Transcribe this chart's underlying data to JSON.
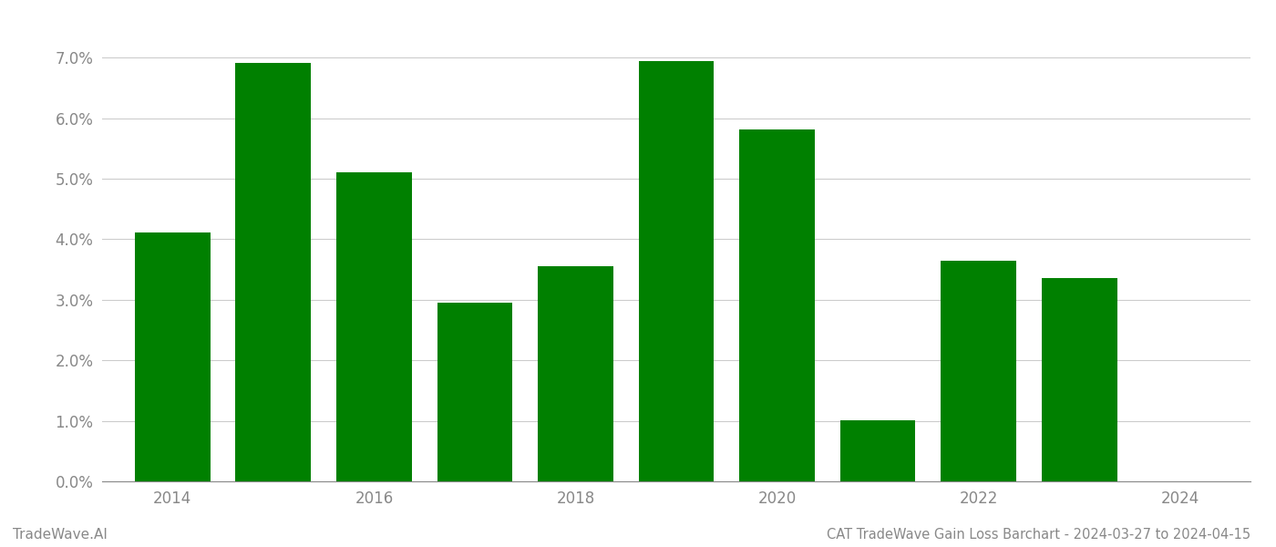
{
  "years": [
    2014,
    2015,
    2016,
    2017,
    2018,
    2019,
    2020,
    2021,
    2022,
    2023
  ],
  "values": [
    0.0411,
    0.0692,
    0.0511,
    0.0295,
    0.0355,
    0.0695,
    0.0581,
    0.0101,
    0.0365,
    0.0336
  ],
  "bar_color": "#008000",
  "background_color": "#ffffff",
  "grid_color": "#cccccc",
  "title": "CAT TradeWave Gain Loss Barchart - 2024-03-27 to 2024-04-15",
  "watermark": "TradeWave.AI",
  "xlim_left": 2013.3,
  "xlim_right": 2024.7,
  "ylim": [
    0,
    0.075
  ],
  "yticks": [
    0.0,
    0.01,
    0.02,
    0.03,
    0.04,
    0.05,
    0.06,
    0.07
  ],
  "xticks": [
    2014,
    2016,
    2018,
    2020,
    2022,
    2024
  ],
  "title_fontsize": 10.5,
  "watermark_fontsize": 11,
  "tick_fontsize": 12,
  "axis_label_color": "#888888",
  "bar_width": 0.75
}
